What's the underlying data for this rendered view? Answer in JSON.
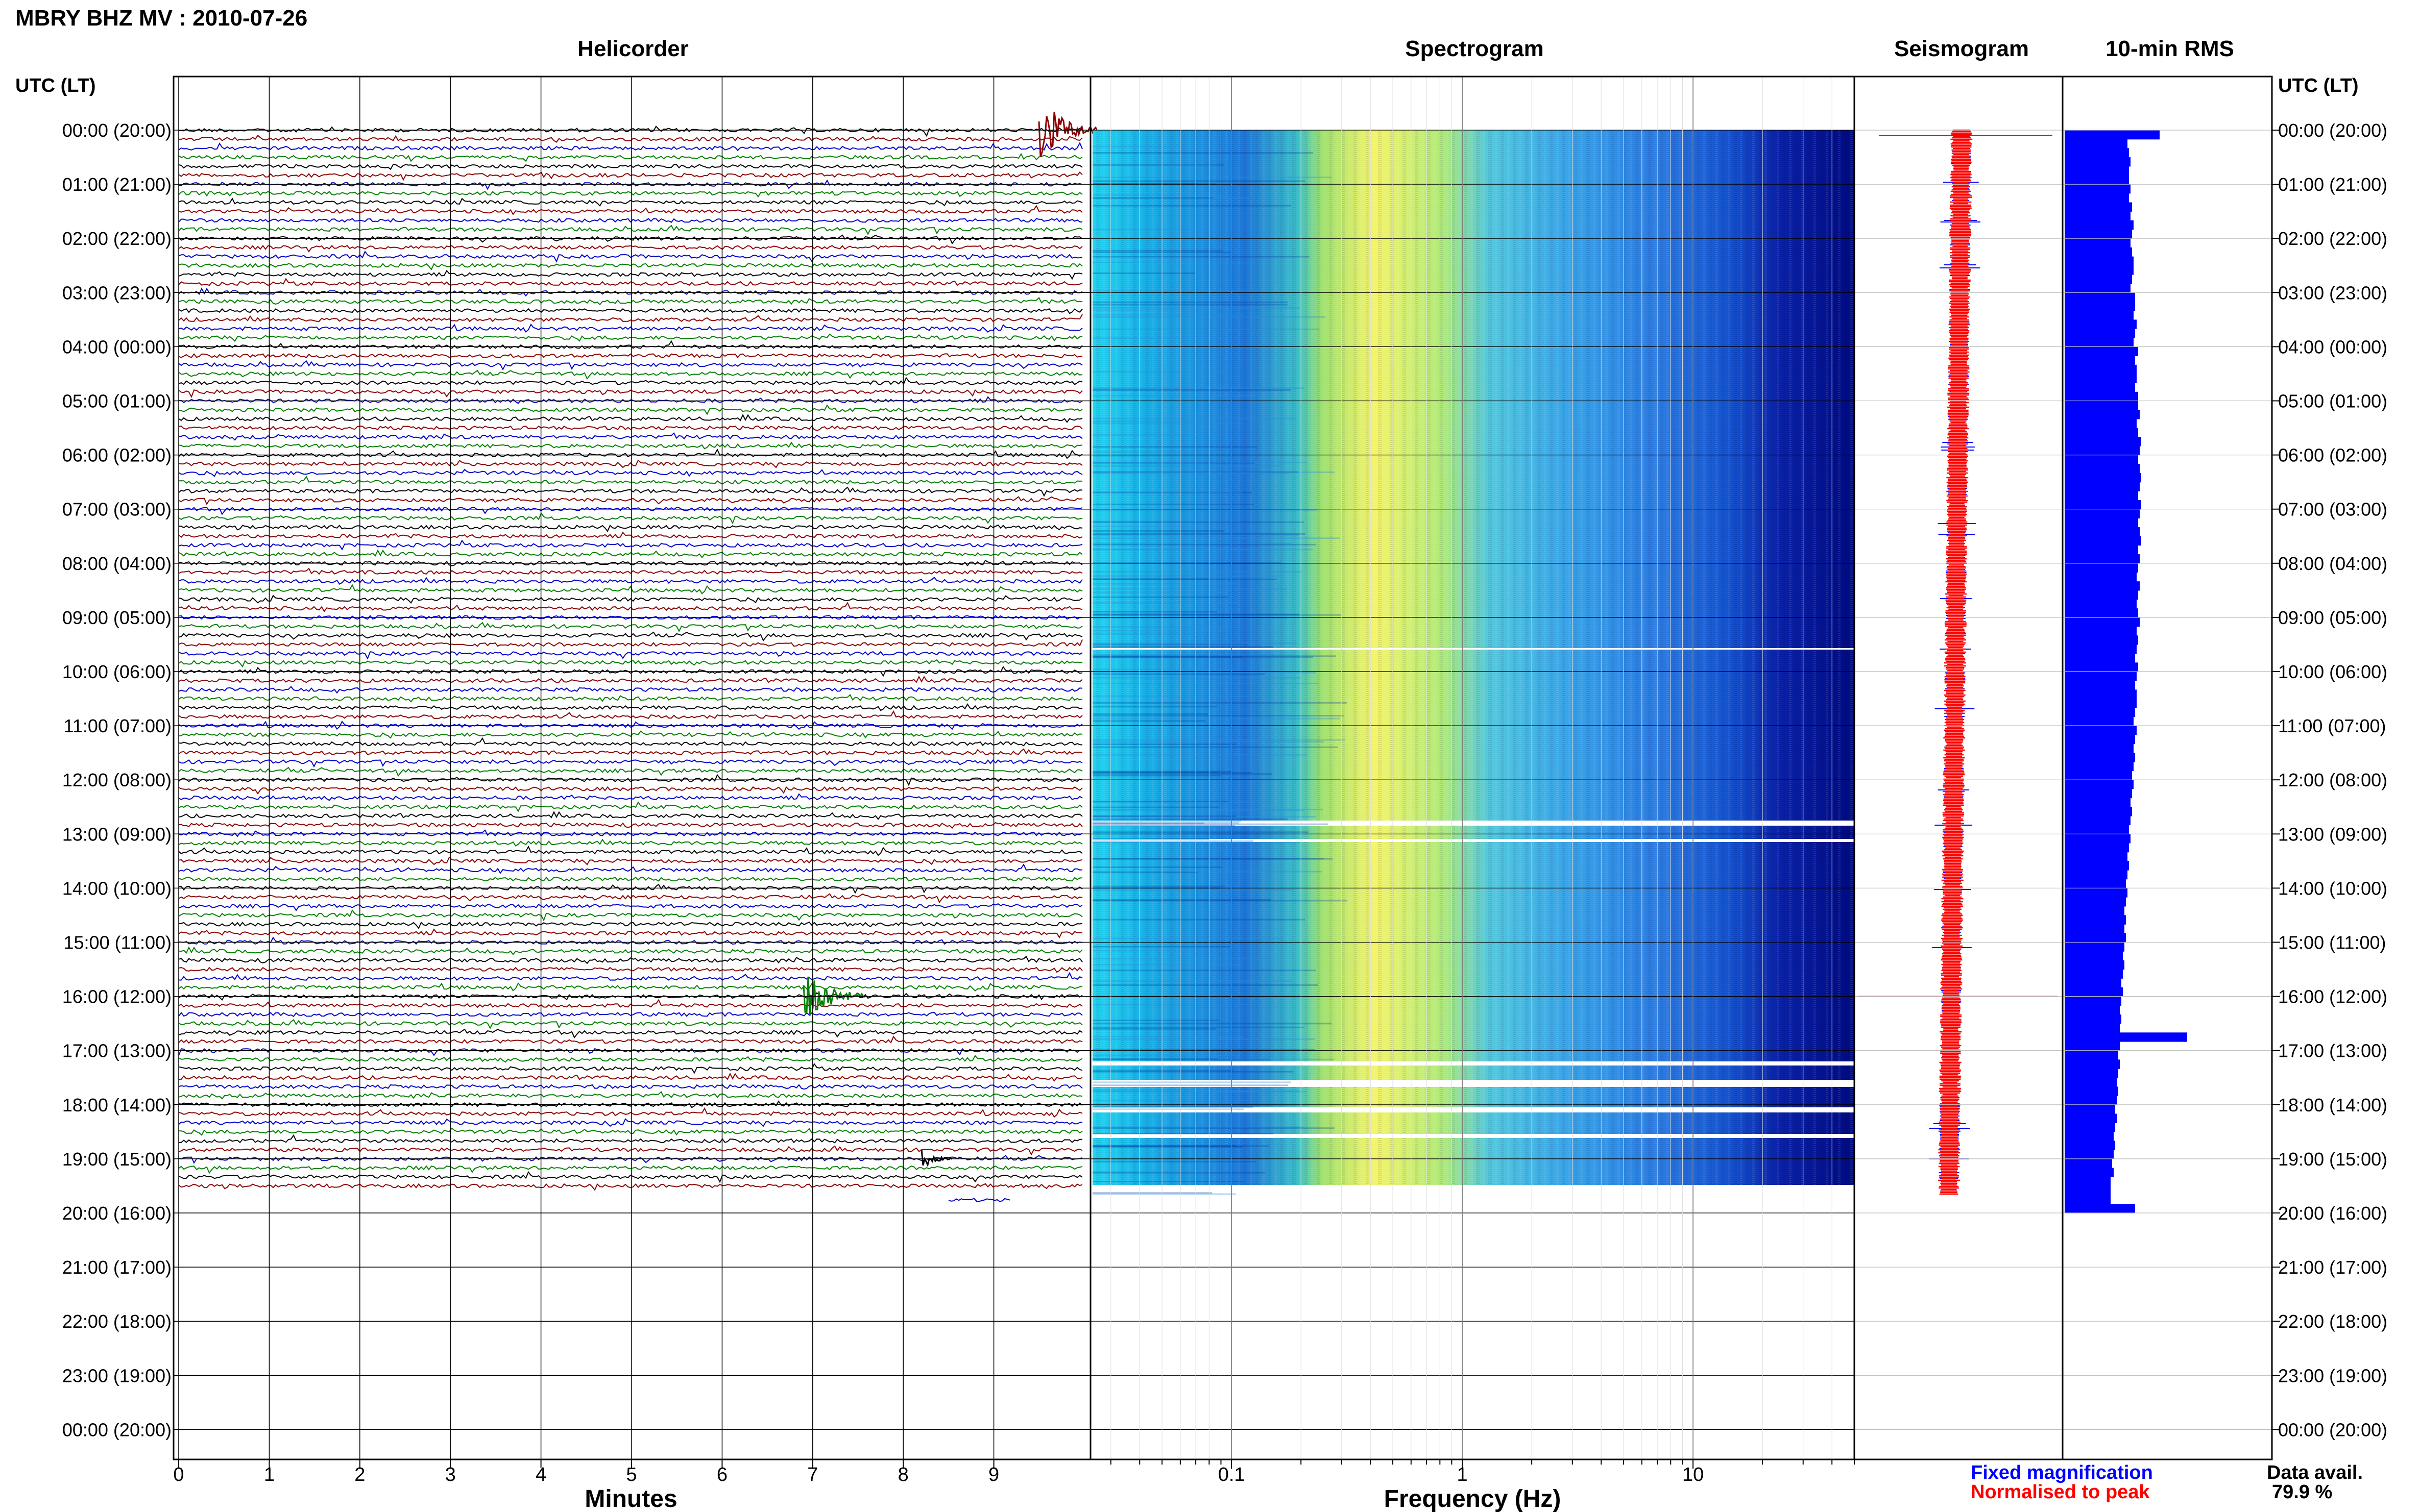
{
  "header": {
    "title": "MBRY BHZ MV : 2010-07-26",
    "time_label_left": "UTC (LT)",
    "time_label_right": "UTC (LT)"
  },
  "panels": {
    "helicorder": "Helicorder",
    "spectrogram": "Spectrogram",
    "seismogram": "Seismogram",
    "rms": "10-min RMS"
  },
  "time_labels": [
    "00:00 (20:00)",
    "01:00 (21:00)",
    "02:00 (22:00)",
    "03:00 (23:00)",
    "04:00 (00:00)",
    "05:00 (01:00)",
    "06:00 (02:00)",
    "07:00 (03:00)",
    "08:00 (04:00)",
    "09:00 (05:00)",
    "10:00 (06:00)",
    "11:00 (07:00)",
    "12:00 (08:00)",
    "13:00 (09:00)",
    "14:00 (10:00)",
    "15:00 (11:00)",
    "16:00 (12:00)",
    "17:00 (13:00)",
    "18:00 (14:00)",
    "19:00 (15:00)",
    "20:00 (16:00)",
    "21:00 (17:00)",
    "22:00 (18:00)",
    "23:00 (19:00)",
    "00:00 (20:00)"
  ],
  "axes": {
    "minutes_label": "Minutes",
    "minutes_ticks": [
      "0",
      "1",
      "2",
      "3",
      "4",
      "5",
      "6",
      "7",
      "8",
      "9"
    ],
    "frequency_label": "Frequency (Hz)",
    "frequency_ticks": [
      "0.1",
      "1",
      "10"
    ]
  },
  "legend": {
    "fixed": "Fixed magnification",
    "normalised": "Normalised to peak",
    "fixed_color": "#0000ff",
    "normalised_color": "#ff0000"
  },
  "availability": {
    "label": "Data avail.",
    "value": "79.9 %"
  },
  "colors": {
    "trace_cycle": [
      "#000000",
      "#8b0000",
      "#0000cc",
      "#008000"
    ],
    "rms_bar": "#0000ff",
    "spectrogram_low": "#00008b",
    "spectrogram_mid": "#1e90ff",
    "spectrogram_high": "#ffff66"
  },
  "chart_data": [
    {
      "type": "line",
      "title": "Helicorder",
      "xlabel": "Minutes",
      "xlim": [
        0,
        10
      ],
      "rows_per_hour": 6,
      "data_end_utc": "19:40",
      "events": [
        {
          "utc": "00:00",
          "minute": 9.5,
          "amplitude": "large"
        },
        {
          "utc": "16:00",
          "minute": 6.9,
          "amplitude": "large"
        },
        {
          "utc": "19:00",
          "minute": 8.2,
          "amplitude": "medium"
        }
      ]
    },
    {
      "type": "heatmap",
      "title": "Spectrogram",
      "xlabel": "Frequency (Hz)",
      "xscale": "log",
      "xlim": [
        0.025,
        50
      ],
      "peak_band_hz": [
        0.2,
        0.5
      ],
      "data_end_utc": "19:40"
    },
    {
      "type": "bar",
      "title": "10-min RMS",
      "orientation": "horizontal",
      "max_relative": 1.0,
      "values": [
        0.62,
        0.41,
        0.42,
        0.43,
        0.42,
        0.42,
        0.43,
        0.42,
        0.44,
        0.43,
        0.45,
        0.44,
        0.43,
        0.44,
        0.45,
        0.45,
        0.44,
        0.43,
        0.46,
        0.46,
        0.45,
        0.47,
        0.46,
        0.45,
        0.48,
        0.46,
        0.47,
        0.47,
        0.46,
        0.48,
        0.48,
        0.49,
        0.47,
        0.48,
        0.5,
        0.49,
        0.48,
        0.49,
        0.5,
        0.49,
        0.48,
        0.5,
        0.49,
        0.48,
        0.49,
        0.5,
        0.48,
        0.49,
        0.48,
        0.47,
        0.49,
        0.48,
        0.47,
        0.48,
        0.49,
        0.47,
        0.48,
        0.47,
        0.46,
        0.48,
        0.47,
        0.46,
        0.47,
        0.47,
        0.46,
        0.45,
        0.47,
        0.46,
        0.45,
        0.46,
        0.45,
        0.44,
        0.45,
        0.44,
        0.43,
        0.44,
        0.43,
        0.42,
        0.43,
        0.42,
        0.41,
        0.42,
        0.41,
        0.4,
        0.41,
        0.4,
        0.39,
        0.4,
        0.39,
        0.4,
        0.39,
        0.38,
        0.39,
        0.38,
        0.37,
        0.38,
        0.37,
        0.36,
        0.37,
        0.36,
        0.8,
        0.36,
        0.35,
        0.36,
        0.35,
        0.34,
        0.35,
        0.34,
        0.33,
        0.34,
        0.33,
        0.32,
        0.33,
        0.32,
        0.31,
        0.32,
        0.3,
        0.3,
        0.3,
        0.46
      ]
    }
  ]
}
